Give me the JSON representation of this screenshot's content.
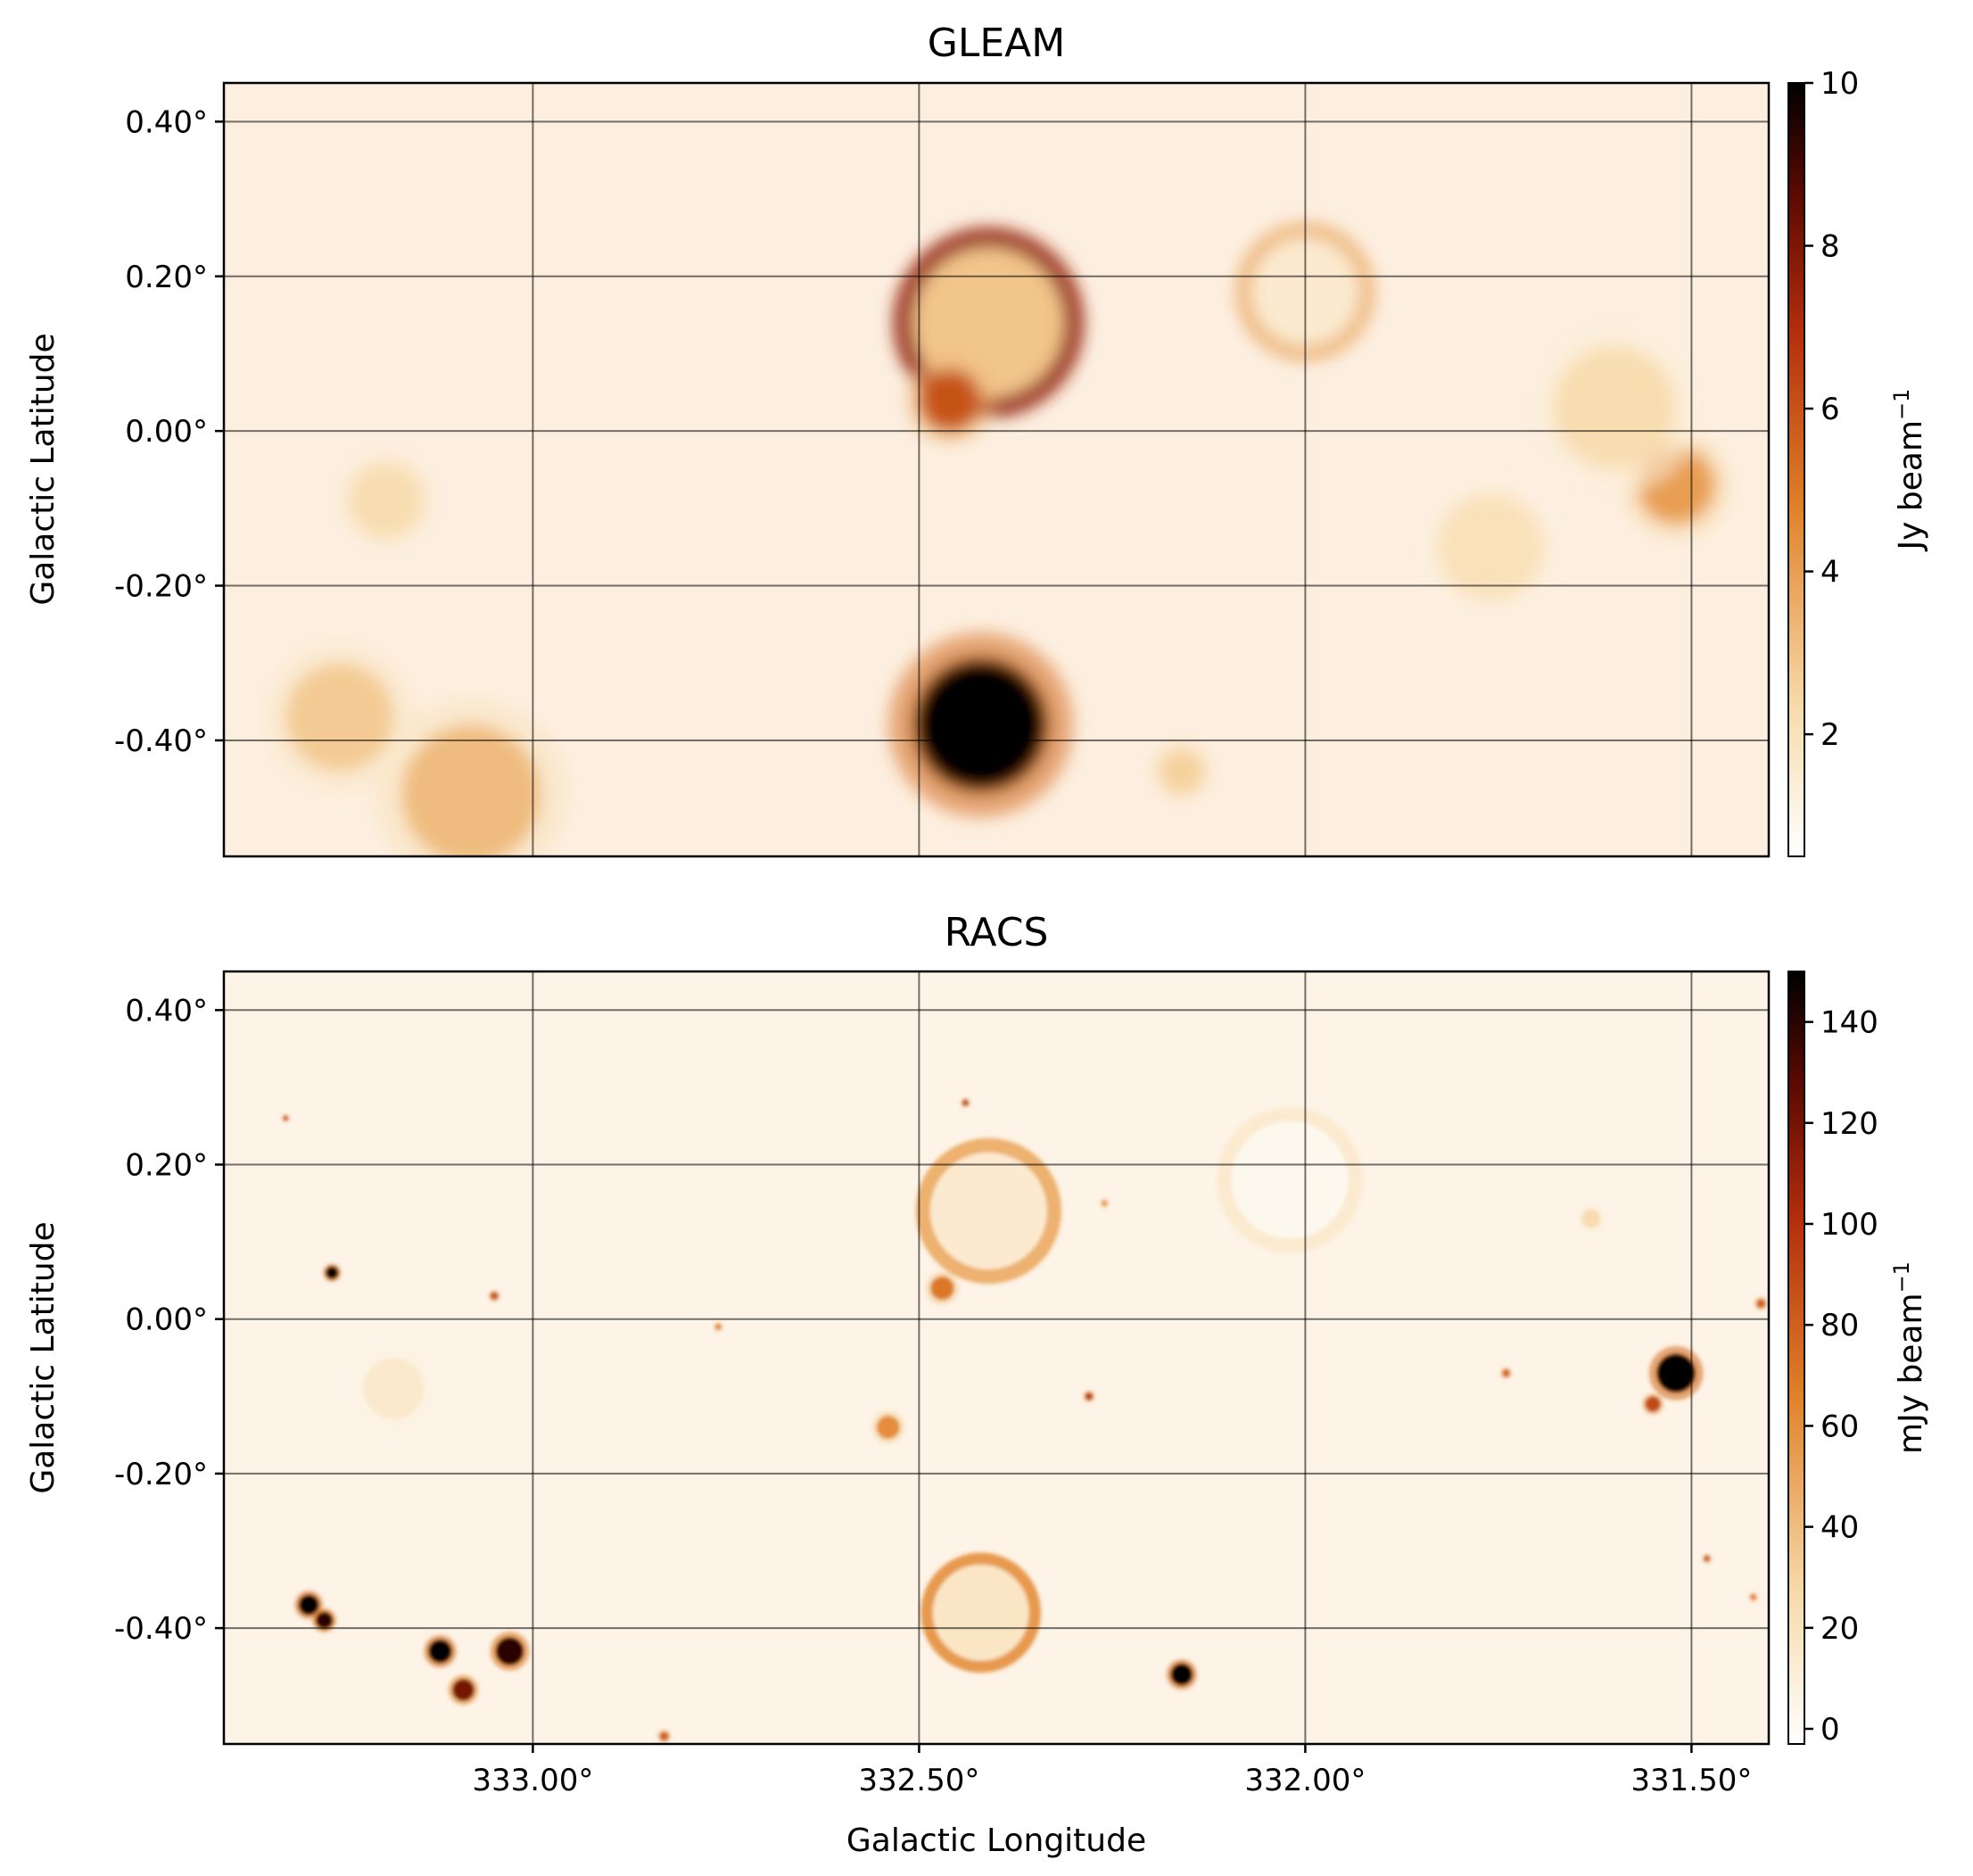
{
  "figure": {
    "xlabel": "Galactic Longitude",
    "ylabel": "Galactic Latitude"
  },
  "chart_data": [
    {
      "type": "heatmap",
      "title": "GLEAM",
      "xlabel": "",
      "ylabel": "Galactic Latitude",
      "xlim": [
        333.4,
        331.4
      ],
      "ylim": [
        -0.55,
        0.45
      ],
      "x_ticks": [
        333.0,
        332.5,
        332.0,
        331.5
      ],
      "x_tick_labels": [
        "333.00°",
        "332.50°",
        "332.00°",
        "331.50°"
      ],
      "y_ticks": [
        0.4,
        0.2,
        0.0,
        -0.2,
        -0.4
      ],
      "y_tick_labels": [
        "0.40°",
        "0.20°",
        "0.00°",
        "-0.20°",
        "-0.40°"
      ],
      "grid": true,
      "colorbar": {
        "label": "Jy beam",
        "label_superscript": "−1",
        "range": [
          0.5,
          10
        ],
        "ticks": [
          2,
          4,
          6,
          8,
          10
        ],
        "tick_labels": [
          "2",
          "4",
          "6",
          "8",
          "10"
        ],
        "colormap": "gist_heat_r"
      },
      "sources": [
        {
          "l": 332.41,
          "b": 0.14,
          "kind": "shell",
          "radius": 0.11,
          "peak": 7.5
        },
        {
          "l": 332.46,
          "b": 0.04,
          "kind": "blob",
          "radius": 0.04,
          "peak": 6.0
        },
        {
          "l": 332.0,
          "b": 0.18,
          "kind": "shell",
          "radius": 0.08,
          "peak": 3.5
        },
        {
          "l": 332.42,
          "b": -0.38,
          "kind": "blob",
          "radius": 0.085,
          "peak": 10.0
        },
        {
          "l": 331.52,
          "b": -0.07,
          "kind": "blob",
          "radius": 0.05,
          "peak": 4.0
        },
        {
          "l": 333.08,
          "b": -0.47,
          "kind": "blob",
          "radius": 0.09,
          "peak": 3.2
        },
        {
          "l": 333.25,
          "b": -0.37,
          "kind": "blob",
          "radius": 0.07,
          "peak": 2.8
        },
        {
          "l": 333.19,
          "b": -0.09,
          "kind": "blob",
          "radius": 0.05,
          "peak": 2.2
        },
        {
          "l": 332.16,
          "b": -0.44,
          "kind": "blob",
          "radius": 0.03,
          "peak": 2.6
        },
        {
          "l": 331.76,
          "b": -0.15,
          "kind": "blob",
          "radius": 0.07,
          "peak": 2.0
        },
        {
          "l": 331.6,
          "b": 0.03,
          "kind": "blob",
          "radius": 0.08,
          "peak": 2.2
        }
      ]
    },
    {
      "type": "heatmap",
      "title": "RACS",
      "xlabel": "Galactic Longitude",
      "ylabel": "Galactic Latitude",
      "xlim": [
        333.4,
        331.4
      ],
      "ylim": [
        -0.55,
        0.45
      ],
      "x_ticks": [
        333.0,
        332.5,
        332.0,
        331.5
      ],
      "x_tick_labels": [
        "333.00°",
        "332.50°",
        "332.00°",
        "331.50°"
      ],
      "y_ticks": [
        0.4,
        0.2,
        0.0,
        -0.2,
        -0.4
      ],
      "y_tick_labels": [
        "0.40°",
        "0.20°",
        "0.00°",
        "-0.20°",
        "-0.40°"
      ],
      "grid": true,
      "colorbar": {
        "label": "mJy beam",
        "label_superscript": "−1",
        "range": [
          -3,
          150
        ],
        "ticks": [
          0,
          20,
          40,
          60,
          80,
          100,
          120,
          140
        ],
        "tick_labels": [
          "0",
          "20",
          "40",
          "60",
          "80",
          "100",
          "120",
          "140"
        ],
        "colormap": "gist_heat_r"
      },
      "sources": [
        {
          "l": 332.41,
          "b": 0.14,
          "kind": "shell",
          "radius": 0.085,
          "peak": 45
        },
        {
          "l": 332.02,
          "b": 0.18,
          "kind": "shell",
          "radius": 0.085,
          "peak": 14
        },
        {
          "l": 332.42,
          "b": -0.38,
          "kind": "shell",
          "radius": 0.07,
          "peak": 55
        },
        {
          "l": 332.47,
          "b": 0.04,
          "kind": "blob",
          "radius": 0.015,
          "peak": 70
        },
        {
          "l": 332.54,
          "b": -0.14,
          "kind": "blob",
          "radius": 0.015,
          "peak": 60
        },
        {
          "l": 331.52,
          "b": -0.07,
          "kind": "blob",
          "radius": 0.025,
          "peak": 150
        },
        {
          "l": 331.55,
          "b": -0.11,
          "kind": "blob",
          "radius": 0.01,
          "peak": 90
        },
        {
          "l": 333.12,
          "b": -0.43,
          "kind": "blob",
          "radius": 0.015,
          "peak": 150
        },
        {
          "l": 333.03,
          "b": -0.43,
          "kind": "blob",
          "radius": 0.018,
          "peak": 140
        },
        {
          "l": 333.09,
          "b": -0.48,
          "kind": "blob",
          "radius": 0.014,
          "peak": 120
        },
        {
          "l": 333.29,
          "b": -0.37,
          "kind": "blob",
          "radius": 0.013,
          "peak": 150
        },
        {
          "l": 333.27,
          "b": -0.39,
          "kind": "blob",
          "radius": 0.011,
          "peak": 140
        },
        {
          "l": 333.26,
          "b": 0.06,
          "kind": "blob",
          "radius": 0.008,
          "peak": 150
        },
        {
          "l": 333.05,
          "b": 0.03,
          "kind": "blob",
          "radius": 0.005,
          "peak": 90
        },
        {
          "l": 333.18,
          "b": -0.09,
          "kind": "blob",
          "radius": 0.04,
          "peak": 15
        },
        {
          "l": 332.16,
          "b": -0.46,
          "kind": "blob",
          "radius": 0.014,
          "peak": 150
        },
        {
          "l": 332.28,
          "b": -0.1,
          "kind": "blob",
          "radius": 0.005,
          "peak": 100
        },
        {
          "l": 331.74,
          "b": -0.07,
          "kind": "blob",
          "radius": 0.005,
          "peak": 80
        },
        {
          "l": 332.44,
          "b": 0.28,
          "kind": "blob",
          "radius": 0.004,
          "peak": 100
        },
        {
          "l": 332.26,
          "b": 0.15,
          "kind": "blob",
          "radius": 0.004,
          "peak": 60
        },
        {
          "l": 331.63,
          "b": 0.13,
          "kind": "blob",
          "radius": 0.012,
          "peak": 25
        },
        {
          "l": 331.41,
          "b": 0.02,
          "kind": "blob",
          "radius": 0.006,
          "peak": 80
        },
        {
          "l": 332.83,
          "b": -0.54,
          "kind": "blob",
          "radius": 0.006,
          "peak": 80
        },
        {
          "l": 333.32,
          "b": 0.26,
          "kind": "blob",
          "radius": 0.003,
          "peak": 90
        },
        {
          "l": 332.76,
          "b": -0.01,
          "kind": "blob",
          "radius": 0.004,
          "peak": 70
        },
        {
          "l": 331.48,
          "b": -0.31,
          "kind": "blob",
          "radius": 0.004,
          "peak": 90
        },
        {
          "l": 331.42,
          "b": -0.36,
          "kind": "blob",
          "radius": 0.004,
          "peak": 70
        }
      ]
    }
  ]
}
